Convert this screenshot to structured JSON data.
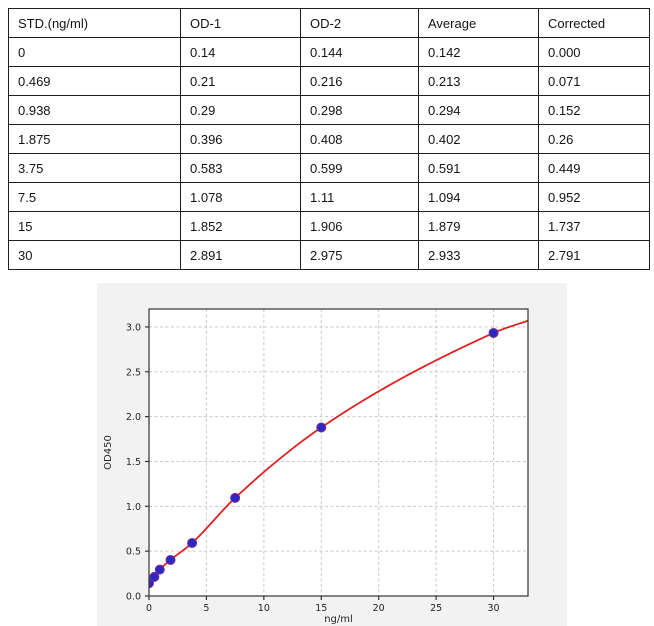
{
  "table": {
    "headers": [
      "STD.(ng/ml)",
      "OD-1",
      "OD-2",
      "Average",
      "Corrected"
    ],
    "rows": [
      [
        "0",
        "0.14",
        "0.144",
        "0.142",
        "0.000"
      ],
      [
        "0.469",
        "0.21",
        "0.216",
        "0.213",
        "0.071"
      ],
      [
        "0.938",
        "0.29",
        "0.298",
        "0.294",
        "0.152"
      ],
      [
        "1.875",
        "0.396",
        "0.408",
        "0.402",
        "0.26"
      ],
      [
        "3.75",
        "0.583",
        "0.599",
        "0.591",
        "0.449"
      ],
      [
        "7.5",
        "1.078",
        "1.11",
        "1.094",
        "0.952"
      ],
      [
        "15",
        "1.852",
        "1.906",
        "1.879",
        "1.737"
      ],
      [
        "30",
        "2.891",
        "2.975",
        "2.933",
        "2.791"
      ]
    ]
  },
  "chart_data": {
    "type": "scatter",
    "title": "",
    "xlabel": "ng/ml",
    "ylabel": "OD450",
    "x": [
      0,
      0.469,
      0.938,
      1.875,
      3.75,
      7.5,
      15,
      30
    ],
    "y": [
      0.142,
      0.213,
      0.294,
      0.402,
      0.591,
      1.094,
      1.879,
      2.933
    ],
    "fit_curve_end": {
      "x": 33,
      "y": 3.07
    },
    "xlim": [
      0,
      33
    ],
    "ylim": [
      0,
      3.2
    ],
    "xticks": [
      0,
      5,
      10,
      15,
      20,
      25,
      30
    ],
    "yticks": [
      0,
      0.5,
      1,
      1.5,
      2,
      2.5,
      3
    ],
    "grid": true,
    "legend_position": "none",
    "colors": {
      "curve": "#dd2222",
      "point_fill": "#2b28c4",
      "point_edge": "#7b2d8b",
      "grid": "#c9c9c9",
      "spine": "#333333",
      "figure_bg": "#f2f2f2",
      "plot_bg": "#ffffff"
    }
  }
}
